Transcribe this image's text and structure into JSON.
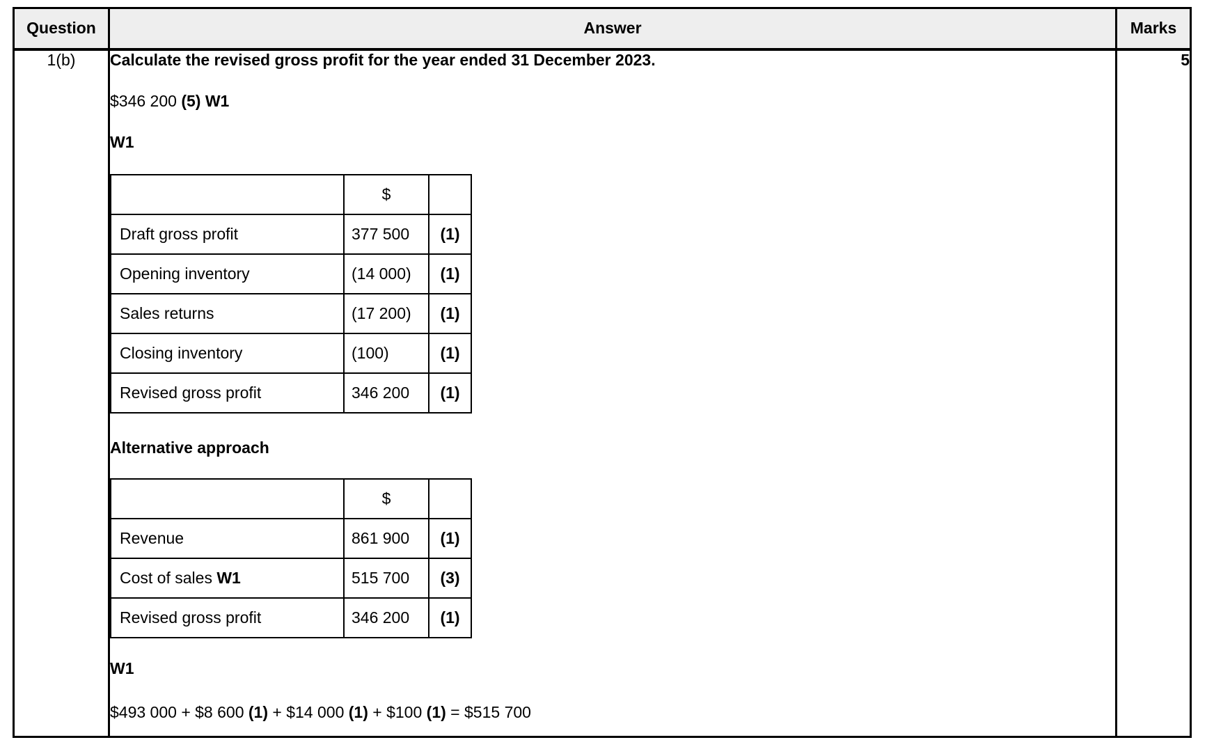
{
  "colors": {
    "header_bg": "#eeeeee",
    "border": "#000000",
    "text": "#000000"
  },
  "header": {
    "question": "Question",
    "answer": "Answer",
    "marks": "Marks"
  },
  "row": {
    "question_id": "1(b)",
    "marks_value": "5",
    "title": "Calculate the revised gross profit for the year ended 31 December 2023.",
    "result_line": {
      "value": "$346 200",
      "mark": " (5)",
      "ref": " W1"
    },
    "working1_heading": "W1",
    "table1": {
      "value_header": "$",
      "rows": [
        {
          "label": "Draft gross profit",
          "value": "377 500",
          "mark": "(1)"
        },
        {
          "label": "Opening inventory",
          "value": "(14 000)",
          "mark": "(1)"
        },
        {
          "label": "Sales returns",
          "value": "(17 200)",
          "mark": "(1)"
        },
        {
          "label": "Closing inventory",
          "value": "(100)",
          "mark": "(1)"
        },
        {
          "label": "Revised gross profit",
          "value": "346 200",
          "mark": "(1)"
        }
      ]
    },
    "alternative_heading": "Alternative approach",
    "table2": {
      "value_header": "$",
      "rows": [
        {
          "label": "Revenue",
          "label_ref": "",
          "value": "861 900",
          "mark": "(1)"
        },
        {
          "label": "Cost of sales ",
          "label_ref": "W1",
          "value": "515 700",
          "mark": "(3)"
        },
        {
          "label": "Revised gross profit",
          "label_ref": "",
          "value": "346 200",
          "mark": "(1)"
        }
      ]
    },
    "working2_heading": "W1",
    "formula": {
      "seg1": "$493 000 + $8 600 ",
      "mark1": "(1)",
      "seg2": " + $14 000 ",
      "mark2": "(1)",
      "seg3": " + $100 ",
      "mark3": "(1)",
      "seg4": " = $515 700"
    }
  }
}
